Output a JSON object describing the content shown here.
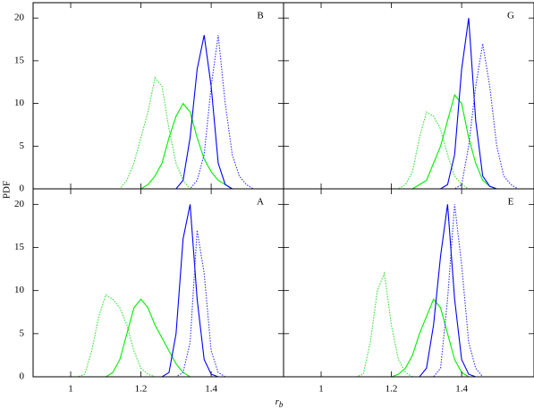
{
  "chart_data": [
    {
      "type": "line",
      "title": "B",
      "ylabel": "PDF",
      "x": [
        1.0,
        1.02,
        1.04,
        1.06,
        1.08,
        1.1,
        1.12,
        1.14,
        1.16,
        1.18,
        1.2,
        1.22,
        1.24,
        1.26,
        1.28,
        1.3,
        1.32,
        1.34,
        1.36,
        1.38,
        1.4,
        1.42,
        1.44,
        1.46,
        1.48,
        1.5,
        1.52,
        1.54,
        1.56
      ],
      "xlim": [
        0.893,
        1.606
      ],
      "xticks": [
        1,
        1.2,
        1.4
      ],
      "ylim": [
        0,
        21.8
      ],
      "yticks": [
        0,
        5,
        10,
        15,
        20
      ],
      "series": [
        {
          "color": "#33dd33",
          "dashed": true,
          "values": [
            0,
            0,
            0,
            0,
            0,
            0,
            0,
            0,
            1,
            3,
            6,
            9,
            13,
            12,
            7,
            3,
            1,
            0,
            0,
            0,
            0,
            0,
            0,
            0,
            0,
            0,
            0,
            0,
            0
          ]
        },
        {
          "color": "#00ee00",
          "dashed": false,
          "values": [
            0,
            0,
            0,
            0,
            0,
            0,
            0,
            0,
            0,
            0,
            0,
            0.5,
            1.5,
            3,
            6,
            8.5,
            10,
            9,
            6,
            3.5,
            2,
            1,
            0.5,
            0,
            0,
            0,
            0,
            0,
            0
          ]
        },
        {
          "color": "#0000ff",
          "dashed": false,
          "values": [
            0,
            0,
            0,
            0,
            0,
            0,
            0,
            0,
            0,
            0,
            0,
            0,
            0,
            0,
            0,
            0,
            1,
            6,
            14,
            18,
            12,
            3,
            0.5,
            0,
            0,
            0,
            0,
            0,
            0
          ]
        },
        {
          "color": "#3333ff",
          "dashed": true,
          "values": [
            0,
            0,
            0,
            0,
            0,
            0,
            0,
            0,
            0,
            0,
            0,
            0,
            0,
            0,
            0,
            0,
            0,
            0,
            1,
            4,
            12,
            18,
            10,
            4,
            1.5,
            0.5,
            0,
            0,
            0
          ]
        }
      ]
    },
    {
      "type": "line",
      "title": "G",
      "x": [
        1.0,
        1.02,
        1.04,
        1.06,
        1.08,
        1.1,
        1.12,
        1.14,
        1.16,
        1.18,
        1.2,
        1.22,
        1.24,
        1.26,
        1.28,
        1.3,
        1.32,
        1.34,
        1.36,
        1.38,
        1.4,
        1.42,
        1.44,
        1.46,
        1.48,
        1.5,
        1.52,
        1.54,
        1.56
      ],
      "xlim": [
        0.893,
        1.606
      ],
      "xticks": [
        1,
        1.2,
        1.4
      ],
      "ylim": [
        0,
        21.8
      ],
      "yticks": [
        0,
        5,
        10,
        15,
        20
      ],
      "series": [
        {
          "color": "#33dd33",
          "dashed": true,
          "values": [
            0,
            0,
            0,
            0,
            0,
            0,
            0,
            0,
            0,
            0,
            0,
            0,
            0.5,
            2,
            6,
            9,
            8.5,
            7,
            4,
            1.5,
            0.5,
            0,
            0,
            0,
            0,
            0,
            0,
            0,
            0
          ]
        },
        {
          "color": "#00ee00",
          "dashed": false,
          "values": [
            0,
            0,
            0,
            0,
            0,
            0,
            0,
            0,
            0,
            0,
            0,
            0,
            0,
            0,
            0.5,
            1,
            3,
            5,
            8,
            11,
            10,
            6,
            3,
            1,
            0.3,
            0,
            0,
            0,
            0
          ]
        },
        {
          "color": "#0000ff",
          "dashed": false,
          "values": [
            0,
            0,
            0,
            0,
            0,
            0,
            0,
            0,
            0,
            0,
            0,
            0,
            0,
            0,
            0,
            0,
            0,
            0,
            0.5,
            4,
            14,
            20,
            8,
            1.5,
            0.3,
            0,
            0,
            0,
            0
          ]
        },
        {
          "color": "#3333ff",
          "dashed": true,
          "values": [
            0,
            0,
            0,
            0,
            0,
            0,
            0,
            0,
            0,
            0,
            0,
            0,
            0,
            0,
            0,
            0,
            0,
            0,
            0,
            0,
            0.5,
            5,
            12,
            17,
            12,
            5,
            1.5,
            0.5,
            0
          ]
        }
      ]
    },
    {
      "type": "line",
      "title": "A",
      "xlabel": "r",
      "xlabel_sub": "b",
      "x": [
        1.0,
        1.02,
        1.04,
        1.06,
        1.08,
        1.1,
        1.12,
        1.14,
        1.16,
        1.18,
        1.2,
        1.22,
        1.24,
        1.26,
        1.28,
        1.3,
        1.32,
        1.34,
        1.36,
        1.38,
        1.4,
        1.42,
        1.44,
        1.46,
        1.48,
        1.5,
        1.52,
        1.54,
        1.56
      ],
      "xlim": [
        0.893,
        1.606
      ],
      "xticks": [
        1,
        1.2,
        1.4
      ],
      "ylim": [
        0,
        21.8
      ],
      "yticks": [
        0,
        5,
        10,
        15,
        20
      ],
      "series": [
        {
          "color": "#33dd33",
          "dashed": true,
          "values": [
            0,
            0,
            0.3,
            3,
            7,
            9.5,
            9,
            8,
            6,
            3,
            1,
            0.3,
            0,
            0,
            0,
            0,
            0,
            0,
            0,
            0,
            0,
            0,
            0,
            0,
            0,
            0,
            0,
            0,
            0
          ]
        },
        {
          "color": "#00ee00",
          "dashed": false,
          "values": [
            0,
            0,
            0,
            0,
            0,
            0,
            0.5,
            2,
            5,
            8,
            9,
            8,
            6,
            4.5,
            3,
            1.5,
            0.5,
            0,
            0,
            0,
            0,
            0,
            0,
            0,
            0,
            0,
            0,
            0,
            0
          ]
        },
        {
          "color": "#0000ff",
          "dashed": false,
          "values": [
            0,
            0,
            0,
            0,
            0,
            0,
            0,
            0,
            0,
            0,
            0,
            0,
            0,
            0,
            0.5,
            5,
            16,
            20,
            9,
            2,
            0.3,
            0,
            0,
            0,
            0,
            0,
            0,
            0,
            0
          ]
        },
        {
          "color": "#3333ff",
          "dashed": true,
          "values": [
            0,
            0,
            0,
            0,
            0,
            0,
            0,
            0,
            0,
            0,
            0,
            0,
            0,
            0,
            0,
            0,
            0.5,
            4,
            17,
            12,
            3,
            0.5,
            0,
            0,
            0,
            0,
            0,
            0,
            0
          ]
        }
      ]
    },
    {
      "type": "line",
      "title": "E",
      "x": [
        1.0,
        1.02,
        1.04,
        1.06,
        1.08,
        1.1,
        1.12,
        1.14,
        1.16,
        1.18,
        1.2,
        1.22,
        1.24,
        1.26,
        1.28,
        1.3,
        1.32,
        1.34,
        1.36,
        1.38,
        1.4,
        1.42,
        1.44,
        1.46,
        1.48,
        1.5,
        1.52,
        1.54,
        1.56
      ],
      "xlim": [
        0.893,
        1.606
      ],
      "xticks": [
        1,
        1.2,
        1.4
      ],
      "ylim": [
        0,
        21.8
      ],
      "yticks": [
        0,
        5,
        10,
        15,
        20
      ],
      "series": [
        {
          "color": "#33dd33",
          "dashed": true,
          "values": [
            0,
            0,
            0,
            0,
            0,
            0,
            0.3,
            4,
            10,
            12,
            6,
            2,
            0.5,
            0,
            0,
            0,
            0,
            0,
            0,
            0,
            0,
            0,
            0,
            0,
            0,
            0,
            0,
            0,
            0
          ]
        },
        {
          "color": "#00ee00",
          "dashed": false,
          "values": [
            0,
            0,
            0,
            0,
            0,
            0,
            0,
            0,
            0,
            0,
            0,
            0.3,
            1,
            2.5,
            5,
            7,
            9,
            8,
            5,
            2,
            0.5,
            0,
            0,
            0,
            0,
            0,
            0,
            0,
            0
          ]
        },
        {
          "color": "#0000ff",
          "dashed": false,
          "values": [
            0,
            0,
            0,
            0,
            0,
            0,
            0,
            0,
            0,
            0,
            0,
            0,
            0,
            0,
            0,
            1,
            6,
            14,
            20,
            9,
            2,
            0.3,
            0,
            0,
            0,
            0,
            0,
            0,
            0
          ]
        },
        {
          "color": "#3333ff",
          "dashed": true,
          "values": [
            0,
            0,
            0,
            0,
            0,
            0,
            0,
            0,
            0,
            0,
            0,
            0,
            0,
            0,
            0,
            0,
            0,
            1,
            9,
            20,
            13,
            4,
            1,
            0,
            0,
            0,
            0,
            0,
            0
          ]
        }
      ]
    }
  ]
}
